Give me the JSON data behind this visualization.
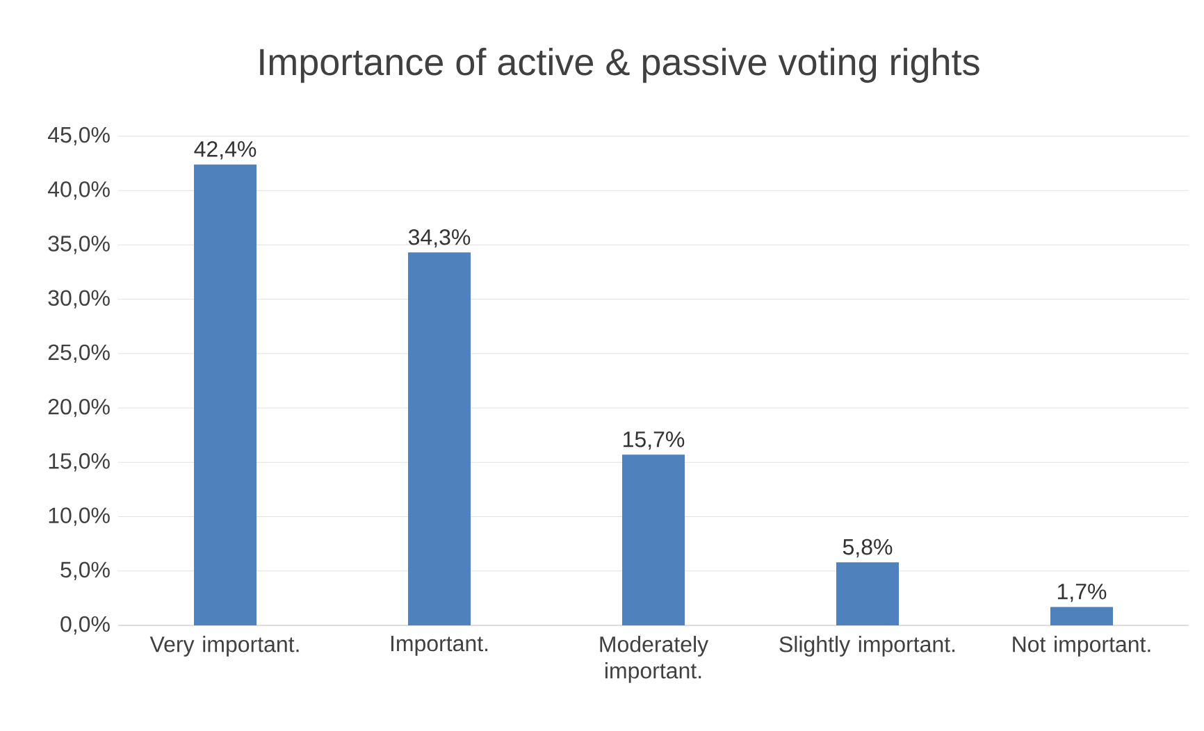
{
  "chart_data": {
    "type": "bar",
    "title": "Importance of active & passive voting rights",
    "categories": [
      "Very important.",
      "Important.",
      "Moderately important.",
      "Slightly important.",
      "Not important."
    ],
    "values": [
      42.4,
      34.3,
      15.7,
      5.8,
      1.7
    ],
    "value_labels": [
      "42,4%",
      "34,3%",
      "15,7%",
      "5,8%",
      "1,7%"
    ],
    "color": "#4f81bd",
    "ylim": [
      0,
      45
    ],
    "yticks": [
      {
        "value": 0,
        "label": "0,0%"
      },
      {
        "value": 5,
        "label": "5,0%"
      },
      {
        "value": 10,
        "label": "10,0%"
      },
      {
        "value": 15,
        "label": "15,0%"
      },
      {
        "value": 20,
        "label": "20,0%"
      },
      {
        "value": 25,
        "label": "25,0%"
      },
      {
        "value": 30,
        "label": "30,0%"
      },
      {
        "value": 35,
        "label": "35,0%"
      },
      {
        "value": 40,
        "label": "40,0%"
      },
      {
        "value": 45,
        "label": "45,0%"
      }
    ],
    "grid": "y"
  }
}
